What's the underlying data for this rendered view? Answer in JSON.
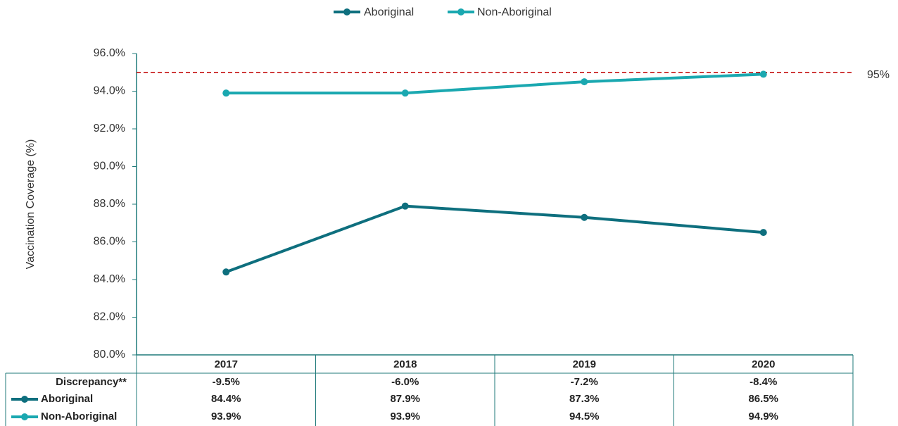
{
  "chart_data": {
    "type": "line",
    "y_label": "Vaccination Coverage (%)",
    "categories": [
      "2017",
      "2018",
      "2019",
      "2020"
    ],
    "series": [
      {
        "name": "Aboriginal",
        "color": "#0e6f7e",
        "values": [
          84.4,
          87.9,
          87.3,
          86.5
        ],
        "value_labels": [
          "84.4%",
          "87.9%",
          "87.3%",
          "86.5%"
        ]
      },
      {
        "name": "Non-Aboriginal",
        "color": "#1aa8b0",
        "values": [
          93.9,
          93.9,
          94.5,
          94.9
        ],
        "value_labels": [
          "93.9%",
          "93.9%",
          "94.5%",
          "94.9%"
        ]
      }
    ],
    "discrepancy": {
      "name": "Discrepancy**",
      "values": [
        -9.5,
        -6.0,
        -7.2,
        -8.4
      ],
      "value_labels": [
        "-9.5%",
        "-6.0%",
        "-7.2%",
        "-8.4%"
      ]
    },
    "reference_line": {
      "value": 95,
      "label": "95%",
      "color": "#c00000"
    },
    "ylim": [
      80,
      96
    ],
    "yticks": [
      {
        "value": 80,
        "label": "80.0%"
      },
      {
        "value": 82,
        "label": "82.0%"
      },
      {
        "value": 84,
        "label": "84.0%"
      },
      {
        "value": 86,
        "label": "86.0%"
      },
      {
        "value": 88,
        "label": "88.0%"
      },
      {
        "value": 90,
        "label": "90.0%"
      },
      {
        "value": 92,
        "label": "92.0%"
      },
      {
        "value": 94,
        "label": "94.0%"
      },
      {
        "value": 96,
        "label": "96.0%"
      }
    ],
    "legend": "top"
  }
}
